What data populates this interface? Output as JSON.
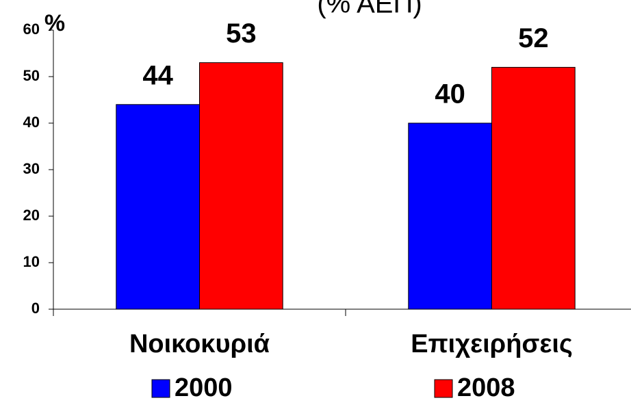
{
  "chart_data": {
    "type": "bar",
    "title": "(% ΑΕΠ)",
    "y_label": "%",
    "categories": [
      "Νοικοκυριά",
      "Επιχειρήσεις"
    ],
    "series": [
      {
        "name": "2000",
        "color": "#0000ff",
        "values": [
          44,
          40
        ]
      },
      {
        "name": "2008",
        "color": "#ff0000",
        "values": [
          53,
          52
        ]
      }
    ],
    "ylim": [
      0,
      60
    ],
    "yticks": [
      0,
      10,
      20,
      30,
      40,
      50,
      60
    ],
    "legend": "bottom"
  }
}
